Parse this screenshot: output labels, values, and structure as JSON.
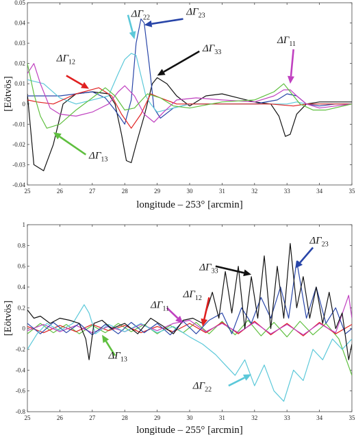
{
  "chart_data": [
    {
      "type": "line",
      "xlabel": "longitude – 253° [arcmin]",
      "ylabel": "[Eötvös]",
      "xlim": [
        25,
        35
      ],
      "ylim": [
        -0.04,
        0.05
      ],
      "x_ticks": [
        25,
        26,
        27,
        28,
        29,
        30,
        31,
        32,
        33,
        34,
        35
      ],
      "y_ticks": [
        -0.04,
        -0.03,
        -0.02,
        -0.01,
        0,
        0.01,
        0.02,
        0.03,
        0.04,
        0.05
      ],
      "y_tick_labels": [
        "-0.04",
        "-0.03",
        "-0.02",
        "-0.01",
        "0",
        "0.01",
        "0.02",
        "0.03",
        "0.04",
        "0.05"
      ],
      "annotations": [
        {
          "symbol": "ΔΓ",
          "sub": "22",
          "color": "#5bc8d9",
          "tx": 28.2,
          "ty": 0.043,
          "ax": 28.1,
          "ay": 0.044,
          "bx": 28.3,
          "by": 0.032
        },
        {
          "symbol": "ΔΓ",
          "sub": "23",
          "color": "#2845a8",
          "tx": 29.9,
          "ty": 0.044,
          "ax": 29.8,
          "ay": 0.042,
          "bx": 28.6,
          "by": 0.039
        },
        {
          "symbol": "ΔΓ",
          "sub": "12",
          "color": "#e02020",
          "tx": 25.9,
          "ty": 0.021,
          "ax": 26.2,
          "ay": 0.014,
          "bx": 26.9,
          "by": 0.0075
        },
        {
          "symbol": "ΔΓ",
          "sub": "33",
          "color": "#111111",
          "tx": 30.4,
          "ty": 0.026,
          "ax": 30.3,
          "ay": 0.026,
          "bx": 29.0,
          "by": 0.014
        },
        {
          "symbol": "ΔΓ",
          "sub": "11",
          "color": "#c040c0",
          "tx": 32.7,
          "ty": 0.03,
          "ax": 33.2,
          "ay": 0.027,
          "bx": 33.1,
          "by": 0.01
        },
        {
          "symbol": "ΔΓ",
          "sub": "13",
          "color": "#5fbf3f",
          "tx": 26.9,
          "ty": -0.027,
          "ax": 26.8,
          "ay": -0.025,
          "bx": 25.8,
          "by": -0.014
        }
      ],
      "series": [
        {
          "color": "#111111",
          "x": [
            25,
            25.2,
            25.5,
            25.8,
            26.1,
            26.5,
            27,
            27.5,
            27.7,
            27.9,
            28.05,
            28.2,
            28.35,
            28.6,
            28.85,
            29,
            29.3,
            29.6,
            30,
            30.5,
            31,
            31.5,
            32,
            32.5,
            32.75,
            32.95,
            33.1,
            33.3,
            33.6,
            34,
            34.5,
            35
          ],
          "y": [
            0.005,
            -0.03,
            -0.033,
            -0.02,
            0.0,
            0.005,
            0.006,
            0.005,
            0.0,
            -0.015,
            -0.028,
            -0.029,
            -0.02,
            -0.006,
            0.01,
            0.013,
            0.01,
            0.004,
            -0.001,
            0.004,
            0.005,
            0.003,
            0.001,
            0.0,
            -0.006,
            -0.016,
            -0.015,
            -0.005,
            0.0,
            0.001,
            0.001,
            0.001
          ]
        },
        {
          "color": "#2845a8",
          "x": [
            25,
            25.5,
            26,
            26.5,
            27,
            27.4,
            27.7,
            28,
            28.2,
            28.35,
            28.5,
            28.6,
            28.75,
            28.9,
            29.1,
            29.5,
            30,
            31,
            32,
            32.7,
            33,
            33.3,
            33.6,
            34,
            34.5,
            35
          ],
          "y": [
            0.004,
            0.004,
            0.004,
            0.005,
            0.006,
            0.003,
            -0.003,
            -0.01,
            0.002,
            0.03,
            0.042,
            0.04,
            0.02,
            -0.002,
            -0.007,
            -0.002,
            0.0,
            0.0,
            0.0,
            0.002,
            0.005,
            0.004,
            0.0,
            -0.001,
            0.0,
            0.0
          ]
        },
        {
          "color": "#5bc8d9",
          "x": [
            25,
            25.5,
            26,
            26.5,
            27,
            27.5,
            27.8,
            28.0,
            28.2,
            28.35,
            28.5,
            28.65,
            28.8,
            29,
            29.5,
            30,
            31,
            32,
            33,
            33.3,
            33.6,
            34,
            35
          ],
          "y": [
            0.012,
            0.01,
            0.003,
            0.0,
            0.002,
            0.004,
            0.015,
            0.022,
            0.025,
            0.024,
            0.014,
            0.004,
            0.0,
            -0.004,
            -0.002,
            0.0,
            0.0,
            0.0,
            0.0,
            0.001,
            0.0,
            0.0,
            0.0
          ]
        },
        {
          "color": "#e02020",
          "x": [
            25,
            25.3,
            25.8,
            26.5,
            27.2,
            27.6,
            27.9,
            28.2,
            28.5,
            28.8,
            29.1,
            29.6,
            30.5,
            31.5,
            32.5,
            33.2,
            33.6,
            34,
            35
          ],
          "y": [
            0.002,
            0.001,
            0.0,
            0.005,
            0.008,
            0.004,
            -0.005,
            -0.012,
            -0.005,
            0.005,
            0.003,
            0.0,
            0.0,
            0.0,
            0.0,
            -0.001,
            0.0,
            0.0,
            0.0
          ]
        },
        {
          "color": "#c040c0",
          "x": [
            25,
            25.2,
            25.4,
            25.7,
            26,
            26.5,
            27,
            27.5,
            27.8,
            28,
            28.3,
            28.6,
            28.9,
            29.2,
            29.6,
            30.2,
            31,
            32,
            32.6,
            32.9,
            33.1,
            33.3,
            33.6,
            34,
            34.5,
            35
          ],
          "y": [
            0.015,
            0.02,
            0.01,
            -0.002,
            -0.005,
            -0.006,
            -0.004,
            0.0,
            0.006,
            0.009,
            0.004,
            -0.005,
            -0.009,
            -0.004,
            0.002,
            0.003,
            0.002,
            0.001,
            0.004,
            0.007,
            0.007,
            0.004,
            0.0,
            -0.002,
            -0.001,
            0.0
          ]
        },
        {
          "color": "#5fbf3f",
          "x": [
            25,
            25.2,
            25.4,
            25.6,
            26,
            26.5,
            27,
            27.4,
            27.7,
            28,
            28.3,
            28.7,
            29.1,
            29.5,
            30,
            31,
            32,
            32.6,
            32.9,
            33.1,
            33.4,
            33.8,
            34.2,
            35
          ],
          "y": [
            0.02,
            0.005,
            -0.006,
            -0.012,
            -0.01,
            -0.003,
            0.003,
            0.008,
            0.004,
            -0.003,
            -0.002,
            0.005,
            0.003,
            -0.001,
            -0.002,
            0.001,
            0.002,
            0.006,
            0.01,
            0.006,
            0.0,
            -0.003,
            -0.003,
            0.0
          ]
        }
      ]
    },
    {
      "type": "line",
      "xlabel": "longitude – 255° [arcmin]",
      "ylabel": "[Eötvös]",
      "xlim": [
        25,
        35
      ],
      "ylim": [
        -0.8,
        1.0
      ],
      "x_ticks": [
        25,
        26,
        27,
        28,
        29,
        30,
        31,
        32,
        33,
        34,
        35
      ],
      "y_ticks": [
        -0.8,
        -0.6,
        -0.4,
        -0.2,
        0,
        0.2,
        0.4,
        0.6,
        0.8,
        1.0
      ],
      "y_tick_labels": [
        "-0.8",
        "-0.6",
        "-0.4",
        "-0.2",
        "0",
        "0.2",
        "0.4",
        "0.6",
        "0.8",
        "1"
      ],
      "annotations": [
        {
          "symbol": "ΔΓ",
          "sub": "23",
          "color": "#2845a8",
          "tx": 33.7,
          "ty": 0.82,
          "ax": 33.8,
          "ay": 0.78,
          "bx": 33.25,
          "by": 0.58
        },
        {
          "symbol": "ΔΓ",
          "sub": "33",
          "color": "#111111",
          "tx": 30.3,
          "ty": 0.56,
          "ax": 30.8,
          "ay": 0.6,
          "bx": 31.9,
          "by": 0.52
        },
        {
          "symbol": "ΔΓ",
          "sub": "12",
          "color": "#e02020",
          "tx": 29.8,
          "ty": 0.3,
          "ax": 30.6,
          "ay": 0.3,
          "bx": 30.4,
          "by": 0.02
        },
        {
          "symbol": "ΔΓ",
          "sub": "11",
          "color": "#c040c0",
          "tx": 28.8,
          "ty": 0.2,
          "ax": 29.3,
          "ay": 0.2,
          "bx": 29.8,
          "by": 0.05
        },
        {
          "symbol": "ΔΓ",
          "sub": "13",
          "color": "#5fbf3f",
          "tx": 27.5,
          "ty": -0.29,
          "ax": 27.7,
          "ay": -0.26,
          "bx": 27.3,
          "by": -0.06
        },
        {
          "symbol": "ΔΓ",
          "sub": "22",
          "color": "#5bc8d9",
          "tx": 30.1,
          "ty": -0.58,
          "ax": 31.2,
          "ay": -0.55,
          "bx": 31.9,
          "by": -0.44
        }
      ],
      "series": [
        {
          "color": "#5fbf3f",
          "x": [
            25,
            25.4,
            25.8,
            26.2,
            26.6,
            27,
            27.4,
            27.8,
            28.2,
            28.6,
            29,
            29.4,
            29.8,
            30.2,
            30.6,
            31,
            31.4,
            31.8,
            32.2,
            32.6,
            33,
            33.4,
            33.8,
            34.2,
            34.6,
            35
          ],
          "y": [
            -0.05,
            0.05,
            -0.04,
            0.04,
            -0.05,
            0.03,
            -0.04,
            0.05,
            -0.03,
            0.04,
            -0.05,
            0.03,
            -0.04,
            0.06,
            -0.05,
            0.07,
            -0.06,
            0.08,
            -0.07,
            0.06,
            -0.08,
            0.07,
            -0.06,
            0.05,
            -0.1,
            -0.45
          ]
        },
        {
          "color": "#e02020",
          "x": [
            25,
            25.5,
            26,
            26.5,
            27,
            27.5,
            28,
            28.5,
            29,
            29.5,
            30,
            30.5,
            31,
            31.5,
            32,
            32.5,
            33,
            33.5,
            34,
            34.5,
            35
          ],
          "y": [
            0.02,
            -0.04,
            0.03,
            -0.03,
            0.04,
            -0.02,
            0.03,
            -0.04,
            0.02,
            -0.03,
            0.05,
            -0.04,
            0.06,
            -0.05,
            0.07,
            -0.06,
            0.05,
            -0.07,
            0.06,
            -0.05,
            0.04
          ]
        },
        {
          "color": "#c040c0",
          "x": [
            25,
            25.5,
            26,
            26.5,
            27,
            27.5,
            28,
            28.5,
            29,
            29.5,
            30,
            30.5,
            31,
            31.5,
            32,
            32.5,
            33,
            33.5,
            34,
            34.5,
            34.9,
            35
          ],
          "y": [
            -0.02,
            0.04,
            -0.03,
            0.03,
            -0.04,
            0.02,
            -0.03,
            0.04,
            -0.02,
            0.05,
            0.08,
            -0.03,
            0.05,
            -0.04,
            0.06,
            -0.05,
            0.04,
            -0.06,
            0.05,
            -0.04,
            0.32,
            0.1
          ]
        },
        {
          "color": "#2845a8",
          "x": [
            25,
            25.4,
            25.8,
            26.2,
            26.6,
            27,
            27.4,
            27.8,
            28.2,
            28.6,
            29,
            29.4,
            29.8,
            30.2,
            30.6,
            31,
            31.3,
            31.6,
            31.9,
            32.2,
            32.5,
            32.8,
            33.05,
            33.3,
            33.6,
            33.9,
            34.2,
            34.5,
            34.8,
            35
          ],
          "y": [
            0.05,
            -0.05,
            0.06,
            -0.04,
            0.05,
            -0.06,
            0.04,
            -0.05,
            0.06,
            -0.04,
            0.05,
            -0.06,
            0.07,
            -0.05,
            0.08,
            0.15,
            -0.05,
            0.2,
            0.05,
            0.3,
            0.1,
            0.4,
            0.1,
            0.65,
            0.1,
            0.4,
            0.05,
            0.2,
            -0.05,
            0.0
          ]
        },
        {
          "color": "#5bc8d9",
          "x": [
            25,
            25.3,
            25.6,
            26,
            26.4,
            26.75,
            26.9,
            27.1,
            27.5,
            28,
            28.5,
            29,
            29.5,
            30,
            30.4,
            30.8,
            31.1,
            31.4,
            31.7,
            32,
            32.3,
            32.6,
            32.9,
            33.2,
            33.5,
            33.8,
            34.1,
            34.4,
            34.7,
            35
          ],
          "y": [
            -0.2,
            -0.05,
            0.05,
            -0.02,
            0.05,
            0.23,
            0.15,
            -0.05,
            0.04,
            -0.03,
            0.05,
            -0.04,
            0.02,
            -0.08,
            -0.15,
            -0.25,
            -0.35,
            -0.45,
            -0.3,
            -0.55,
            -0.35,
            -0.6,
            -0.7,
            -0.4,
            -0.5,
            -0.2,
            -0.3,
            -0.1,
            -0.2,
            -0.1
          ]
        },
        {
          "color": "#111111",
          "x": [
            25,
            25.2,
            25.4,
            25.7,
            26,
            26.3,
            26.6,
            26.8,
            26.9,
            27.05,
            27.3,
            27.6,
            28,
            28.4,
            28.8,
            29.2,
            29.5,
            29.8,
            30.1,
            30.4,
            30.7,
            30.9,
            31.1,
            31.3,
            31.5,
            31.7,
            31.9,
            32.1,
            32.3,
            32.5,
            32.7,
            32.9,
            33.1,
            33.3,
            33.5,
            33.7,
            33.9,
            34.1,
            34.3,
            34.5,
            34.7,
            34.9,
            35
          ],
          "y": [
            0.18,
            0.1,
            0.12,
            0.05,
            0.1,
            0.08,
            0.05,
            -0.1,
            -0.3,
            0.05,
            0.08,
            0.0,
            0.05,
            -0.05,
            0.1,
            0.02,
            -0.05,
            0.08,
            0.1,
            0.05,
            0.35,
            0.1,
            0.55,
            0.15,
            0.6,
            0.0,
            0.5,
            0.1,
            0.7,
            0.0,
            0.6,
            0.1,
            0.82,
            0.2,
            0.5,
            0.1,
            0.4,
            0.05,
            0.35,
            0.0,
            0.15,
            -0.3,
            -0.15
          ]
        }
      ]
    }
  ]
}
